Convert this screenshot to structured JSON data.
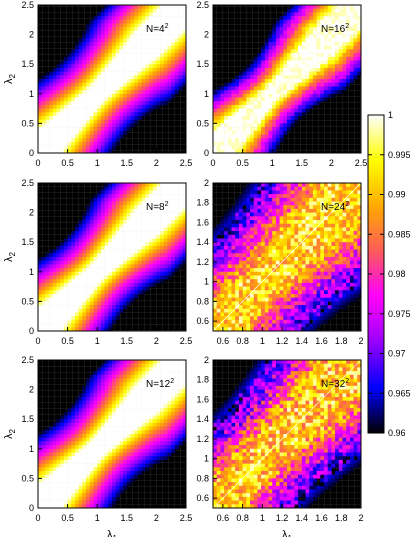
{
  "chart_data": [
    {
      "type": "heatmap",
      "label": "N=4",
      "exp": "2",
      "x_ticks": [
        "0",
        "0.5",
        "1",
        "1.5",
        "2",
        "2.5"
      ],
      "y_ticks": [
        "0",
        "0.5",
        "1",
        "1.5",
        "2",
        "2.5"
      ],
      "xlim": [
        0,
        2.5
      ],
      "ylim": [
        0,
        2.5
      ],
      "ylabel": "λ",
      "ylabel_sub": "2",
      "xlabel": "",
      "xlabel_sub": ""
    },
    {
      "type": "heatmap",
      "label": "N=16",
      "exp": "2",
      "x_ticks": [
        "0",
        "0.5",
        "1",
        "1.5",
        "2",
        "2.5"
      ],
      "y_ticks": [
        "0",
        "0.5",
        "1",
        "1.5",
        "2",
        "2.5"
      ],
      "xlim": [
        0,
        2.5
      ],
      "ylim": [
        0,
        2.5
      ],
      "ylabel": "",
      "ylabel_sub": "",
      "xlabel": "",
      "xlabel_sub": ""
    },
    {
      "type": "heatmap",
      "label": "N=8",
      "exp": "2",
      "x_ticks": [
        "0",
        "0.5",
        "1",
        "1.5",
        "2",
        "2.5"
      ],
      "y_ticks": [
        "0",
        "0.5",
        "1",
        "1.5",
        "2",
        "2.5"
      ],
      "xlim": [
        0,
        2.5
      ],
      "ylim": [
        0,
        2.5
      ],
      "ylabel": "λ",
      "ylabel_sub": "2",
      "xlabel": "",
      "xlabel_sub": ""
    },
    {
      "type": "heatmap",
      "label": "N=24",
      "exp": "2",
      "x_ticks": [
        "0.6",
        "0.8",
        "1",
        "1.2",
        "1.4",
        "1.6",
        "1.8",
        "2"
      ],
      "y_ticks": [
        "0.6",
        "0.8",
        "1",
        "1.2",
        "1.4",
        "1.6",
        "1.8",
        "2"
      ],
      "xlim": [
        0.5,
        2.0
      ],
      "ylim": [
        0.5,
        2.0
      ],
      "ylabel": "",
      "ylabel_sub": "",
      "xlabel": "",
      "xlabel_sub": ""
    },
    {
      "type": "heatmap",
      "label": "N=12",
      "exp": "2",
      "x_ticks": [
        "0",
        "0.5",
        "1",
        "1.5",
        "2",
        "2.5"
      ],
      "y_ticks": [
        "0",
        "0.5",
        "1",
        "1.5",
        "2",
        "2.5"
      ],
      "xlim": [
        0,
        2.5
      ],
      "ylim": [
        0,
        2.5
      ],
      "ylabel": "λ",
      "ylabel_sub": "2",
      "xlabel": "λ",
      "xlabel_sub": "1"
    },
    {
      "type": "heatmap",
      "label": "N=32",
      "exp": "2",
      "x_ticks": [
        "0.6",
        "0.8",
        "1",
        "1.2",
        "1.4",
        "1.6",
        "1.8",
        "2"
      ],
      "y_ticks": [
        "0.6",
        "0.8",
        "1",
        "1.2",
        "1.4",
        "1.6",
        "1.8",
        "2"
      ],
      "xlim": [
        0.5,
        2.0
      ],
      "ylim": [
        0.5,
        2.0
      ],
      "ylabel": "",
      "ylabel_sub": "",
      "xlabel": "λ",
      "xlabel_sub": "1"
    }
  ],
  "colorbar": {
    "min": 0.96,
    "max": 1,
    "ticks": [
      "1",
      "0.995",
      "0.99",
      "0.985",
      "0.98",
      "0.975",
      "0.97",
      "0.965",
      "0.96"
    ],
    "colormap": [
      "#000000",
      "#0000ff",
      "#9900ff",
      "#ff00ff",
      "#ff5a5a",
      "#ffaa00",
      "#ffff00",
      "#ffffff"
    ]
  }
}
